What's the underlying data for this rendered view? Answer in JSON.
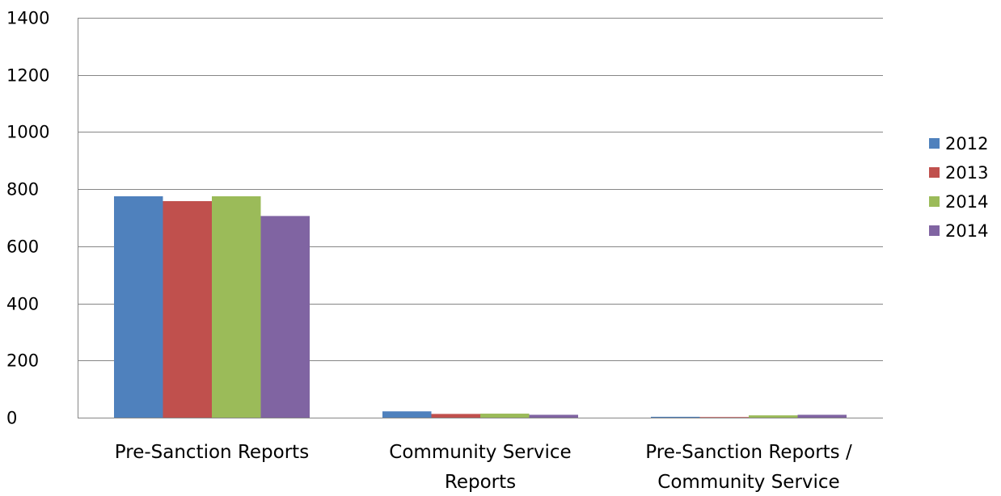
{
  "chart_data": {
    "type": "bar",
    "categories": [
      [
        "Pre-Sanction Reports"
      ],
      [
        "Community Service",
        "Reports"
      ],
      [
        "Pre-Sanction Reports /",
        "Community Service"
      ]
    ],
    "series": [
      {
        "name": "2012",
        "color": "#4F81BD",
        "values": [
          775,
          22,
          3
        ]
      },
      {
        "name": "2013",
        "color": "#C0504D",
        "values": [
          758,
          13,
          2
        ]
      },
      {
        "name": "2014",
        "color": "#9BBB59",
        "values": [
          775,
          14,
          8
        ]
      },
      {
        "name": "2014",
        "color": "#8064A2",
        "values": [
          706,
          10,
          10
        ]
      }
    ],
    "ylim": [
      0,
      1400
    ],
    "yticks": [
      0,
      200,
      400,
      600,
      800,
      1000,
      1200,
      1400
    ],
    "grid": true,
    "legend_position": "right",
    "title": "",
    "xlabel": "",
    "ylabel": ""
  }
}
